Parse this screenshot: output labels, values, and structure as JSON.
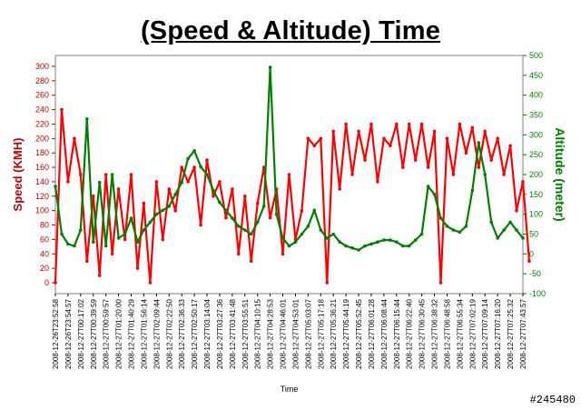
{
  "title": "(Speed & Altitude) Time",
  "watermark": "#245480",
  "colors": {
    "speed": "#ff0000",
    "altitude": "#008000",
    "speed_axis": "#c00000",
    "altitude_axis": "#008000",
    "frame": "#808080"
  },
  "chart_data": {
    "type": "line",
    "title": "(Speed & Altitude) Time",
    "xlabel": "Time",
    "y_left": {
      "label": "Speed (KMH)",
      "range": [
        0,
        300
      ],
      "ticks": [
        0,
        20,
        40,
        60,
        80,
        100,
        120,
        140,
        160,
        180,
        200,
        220,
        240,
        260,
        280,
        300
      ]
    },
    "y_right": {
      "label": "Altitude (meter)",
      "range": [
        -100,
        500
      ],
      "ticks": [
        -100,
        -50,
        0,
        50,
        100,
        150,
        200,
        250,
        300,
        350,
        400,
        450,
        500
      ]
    },
    "grid": false,
    "legend": "none",
    "categories": [
      "2008-12-26T23:52:58",
      "2008-12-26T23:54:57",
      "2008-12-27T00:17:02",
      "2008-12-27T00:39:59",
      "2008-12-27T00:59:57",
      "2008-12-27T01:20:00",
      "2008-12-27T01:40:29",
      "2008-12-27T01:56:14",
      "2008-12-27T02:09:44",
      "2008-12-27T02:22:50",
      "2008-12-27T02:36:33",
      "2008-12-27T02:50:17",
      "2008-12-27T03:14:04",
      "2008-12-27T03:27:36",
      "2008-12-27T03:41:48",
      "2008-12-27T03:55:51",
      "2008-12-27T04:10:15",
      "2008-12-27T04:28:53",
      "2008-12-27T04:46:01",
      "2008-12-27T04:53:01",
      "2008-12-27T05:03:07",
      "2008-12-27T05:17:18",
      "2008-12-27T05:36:21",
      "2008-12-27T05:44:19",
      "2008-12-27T05:52:45",
      "2008-12-27T06:01:28",
      "2008-12-27T06:08:44",
      "2008-12-27T06:15:44",
      "2008-12-27T06:22:40",
      "2008-12-27T06:30:45",
      "2008-12-27T06:38:32",
      "2008-12-27T06:48:58",
      "2008-12-27T06:55:34",
      "2008-12-27T07:02:19",
      "2008-12-27T07:09:14",
      "2008-12-27T07:16:20",
      "2008-12-27T07:25:32",
      "2008-12-27T07:43:57"
    ],
    "series": [
      {
        "name": "Speed (KMH)",
        "axis": "left",
        "values": [
          [
            0,
            0
          ],
          [
            0.5,
            240
          ],
          [
            1,
            140
          ],
          [
            1.5,
            200
          ],
          [
            2,
            150
          ],
          [
            2.5,
            30
          ],
          [
            3,
            120
          ],
          [
            3.5,
            10
          ],
          [
            4,
            150
          ],
          [
            4.5,
            40
          ],
          [
            5,
            130
          ],
          [
            5.5,
            60
          ],
          [
            6,
            150
          ],
          [
            6.5,
            20
          ],
          [
            7,
            110
          ],
          [
            7.5,
            0
          ],
          [
            8,
            140
          ],
          [
            8.5,
            60
          ],
          [
            9,
            130
          ],
          [
            9.5,
            100
          ],
          [
            10,
            160
          ],
          [
            10.5,
            140
          ],
          [
            11,
            160
          ],
          [
            11.5,
            80
          ],
          [
            12,
            170
          ],
          [
            12.5,
            120
          ],
          [
            13,
            140
          ],
          [
            13.5,
            90
          ],
          [
            14,
            130
          ],
          [
            14.5,
            40
          ],
          [
            15,
            120
          ],
          [
            15.5,
            30
          ],
          [
            16,
            110
          ],
          [
            16.5,
            160
          ],
          [
            17,
            90
          ],
          [
            17.5,
            130
          ],
          [
            18,
            40
          ],
          [
            18.5,
            150
          ],
          [
            19,
            60
          ],
          [
            19.5,
            100
          ],
          [
            20,
            200
          ],
          [
            20.5,
            190
          ],
          [
            21,
            200
          ],
          [
            21.5,
            0
          ],
          [
            22,
            210
          ],
          [
            22.5,
            130
          ],
          [
            23,
            220
          ],
          [
            23.5,
            150
          ],
          [
            24,
            210
          ],
          [
            24.5,
            170
          ],
          [
            25,
            220
          ],
          [
            25.5,
            140
          ],
          [
            26,
            200
          ],
          [
            26.5,
            190
          ],
          [
            27,
            220
          ],
          [
            27.5,
            160
          ],
          [
            28,
            220
          ],
          [
            28.5,
            170
          ],
          [
            29,
            220
          ],
          [
            29.5,
            160
          ],
          [
            30,
            210
          ],
          [
            30.5,
            0
          ],
          [
            31,
            200
          ],
          [
            31.5,
            150
          ],
          [
            32,
            220
          ],
          [
            32.5,
            180
          ],
          [
            33,
            215
          ],
          [
            33.5,
            160
          ],
          [
            34,
            210
          ],
          [
            34.5,
            170
          ],
          [
            35,
            200
          ],
          [
            35.5,
            150
          ],
          [
            36,
            190
          ],
          [
            36.5,
            100
          ],
          [
            37,
            140
          ],
          [
            37.5,
            30
          ]
        ]
      },
      {
        "name": "Altitude (meter)",
        "axis": "right",
        "values": [
          [
            0,
            170
          ],
          [
            0.5,
            50
          ],
          [
            1,
            25
          ],
          [
            1.5,
            20
          ],
          [
            2,
            60
          ],
          [
            2.5,
            340
          ],
          [
            3,
            30
          ],
          [
            3.5,
            180
          ],
          [
            4,
            20
          ],
          [
            4.5,
            200
          ],
          [
            5,
            40
          ],
          [
            5.5,
            50
          ],
          [
            6,
            90
          ],
          [
            6.5,
            30
          ],
          [
            7,
            60
          ],
          [
            7.5,
            80
          ],
          [
            8,
            100
          ],
          [
            8.5,
            110
          ],
          [
            9,
            120
          ],
          [
            9.5,
            150
          ],
          [
            10,
            180
          ],
          [
            10.5,
            240
          ],
          [
            11,
            260
          ],
          [
            11.5,
            220
          ],
          [
            12,
            200
          ],
          [
            12.5,
            160
          ],
          [
            13,
            130
          ],
          [
            13.5,
            110
          ],
          [
            14,
            90
          ],
          [
            14.5,
            70
          ],
          [
            15,
            60
          ],
          [
            15.5,
            50
          ],
          [
            16,
            80
          ],
          [
            16.5,
            120
          ],
          [
            17,
            470
          ],
          [
            17.5,
            100
          ],
          [
            18,
            40
          ],
          [
            18.5,
            20
          ],
          [
            19,
            30
          ],
          [
            19.5,
            50
          ],
          [
            20,
            70
          ],
          [
            20.5,
            110
          ],
          [
            21,
            60
          ],
          [
            21.5,
            40
          ],
          [
            22,
            50
          ],
          [
            22.5,
            30
          ],
          [
            23,
            20
          ],
          [
            23.5,
            15
          ],
          [
            24,
            10
          ],
          [
            24.5,
            20
          ],
          [
            25,
            25
          ],
          [
            25.5,
            30
          ],
          [
            26,
            35
          ],
          [
            26.5,
            35
          ],
          [
            27,
            30
          ],
          [
            27.5,
            20
          ],
          [
            28,
            20
          ],
          [
            28.5,
            35
          ],
          [
            29,
            50
          ],
          [
            29.5,
            170
          ],
          [
            30,
            150
          ],
          [
            30.5,
            90
          ],
          [
            31,
            70
          ],
          [
            31.5,
            60
          ],
          [
            32,
            55
          ],
          [
            32.5,
            70
          ],
          [
            33,
            160
          ],
          [
            33.5,
            280
          ],
          [
            34,
            200
          ],
          [
            34.5,
            80
          ],
          [
            35,
            40
          ],
          [
            35.5,
            60
          ],
          [
            36,
            80
          ],
          [
            36.5,
            60
          ],
          [
            37,
            40
          ]
        ]
      }
    ]
  }
}
